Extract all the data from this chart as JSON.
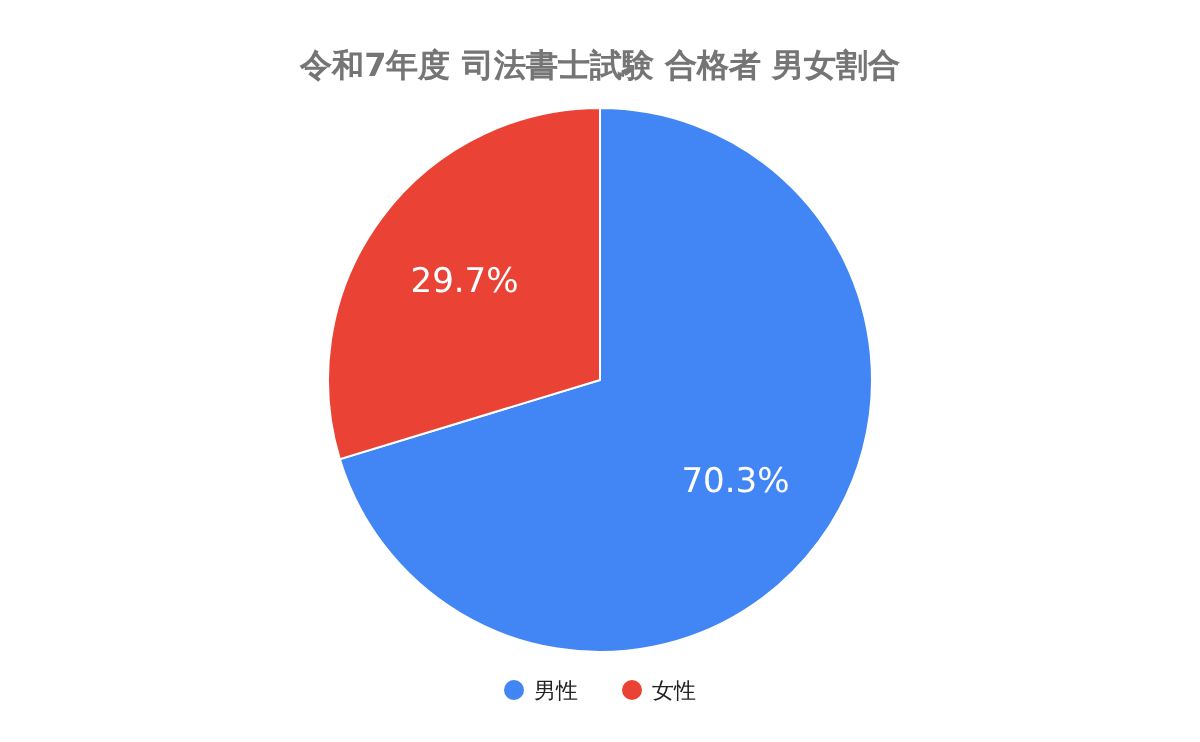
{
  "chart_data": {
    "type": "pie",
    "title": "令和7年度 司法書士試験 合格者 男女割合",
    "categories": [
      "男性",
      "女性"
    ],
    "values": [
      70.3,
      29.7
    ],
    "value_labels": [
      "70.3%",
      "29.7%"
    ],
    "colors": [
      "#4285f4",
      "#ea4335"
    ],
    "legend": "bottom"
  }
}
